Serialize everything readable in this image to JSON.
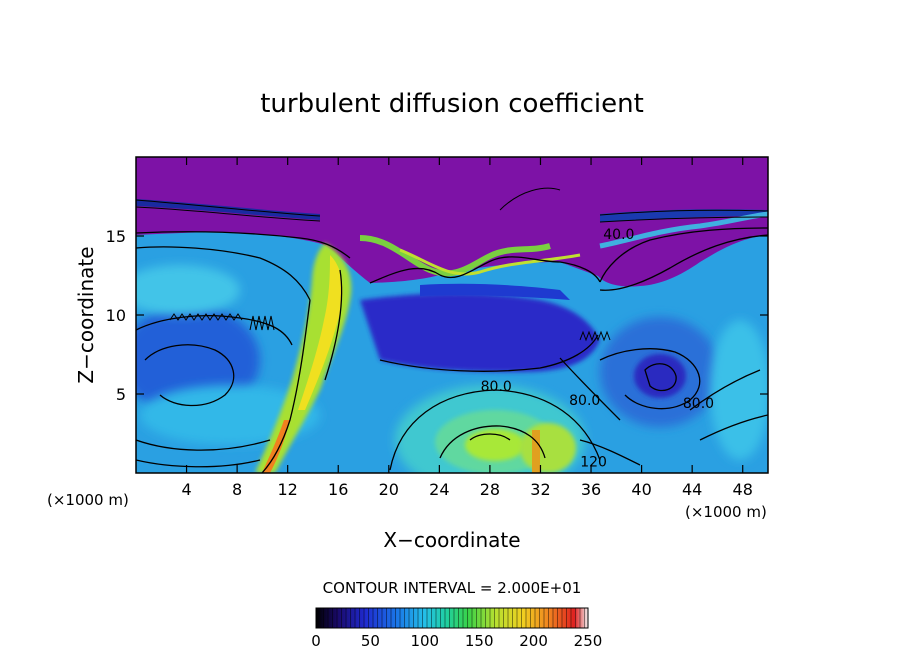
{
  "chart_data": {
    "type": "heatmap",
    "title": "turbulent diffusion coefficient",
    "xlabel": "X−coordinate",
    "ylabel": "Z−coordinate",
    "x_unit": "(×1000 m)",
    "y_unit": "(×1000 m)",
    "xlim": [
      0,
      50
    ],
    "ylim": [
      0,
      20
    ],
    "x_ticks": [
      4,
      8,
      12,
      16,
      20,
      24,
      28,
      32,
      36,
      40,
      44,
      48
    ],
    "y_ticks": [
      5,
      10,
      15
    ],
    "contour_interval_text": "CONTOUR INTERVAL = 2.000E+01",
    "contour_interval": 20,
    "colorbar": {
      "min": 0,
      "max": 250,
      "ticks": [
        0,
        50,
        100,
        150,
        200,
        250
      ]
    },
    "contour_labels": [
      {
        "text": "40.0",
        "x": 38.2,
        "z": 14.8
      },
      {
        "text": "80.0",
        "x": 28.5,
        "z": 5.2
      },
      {
        "text": "80.0",
        "x": 35.5,
        "z": 4.3
      },
      {
        "text": "80.0",
        "x": 44.5,
        "z": 4.1
      },
      {
        "text": "120",
        "x": 36.2,
        "z": 0.4
      }
    ],
    "colors": {
      "background_high": "#7d12a6",
      "low": "#2432c8",
      "mid": "#1ea0e6",
      "high": "#a8e838"
    }
  }
}
